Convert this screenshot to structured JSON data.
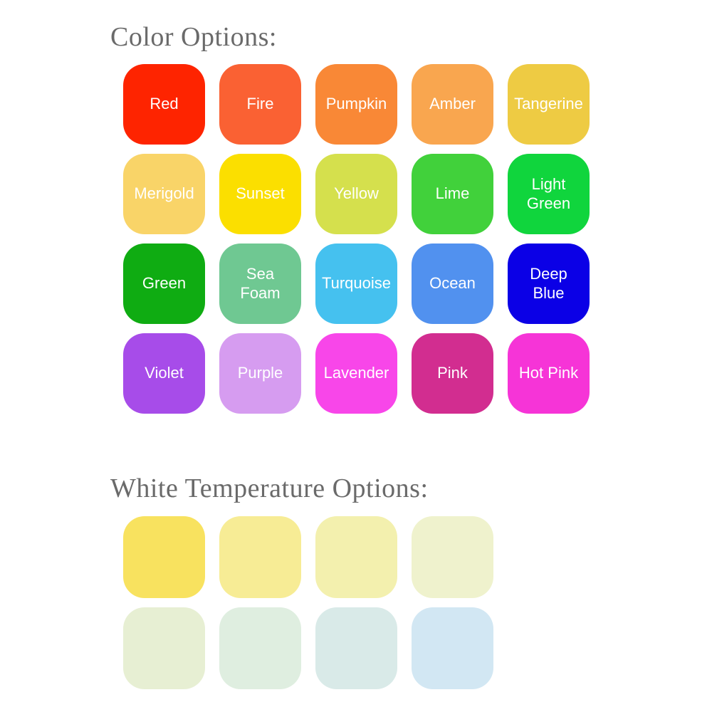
{
  "page": {
    "background": "#ffffff",
    "heading_color": "#6a6a6a",
    "swatch_label_color": "#ffffff"
  },
  "color_section": {
    "title": "Color Options:",
    "swatches": [
      {
        "label": "Red",
        "color": "#FE2400"
      },
      {
        "label": "Fire",
        "color": "#FA6133"
      },
      {
        "label": "Pumpkin",
        "color": "#F98836"
      },
      {
        "label": "Amber",
        "color": "#F9A64F"
      },
      {
        "label": "Tangerine",
        "color": "#EECB43"
      },
      {
        "label": "Merigold",
        "color": "#F9D468"
      },
      {
        "label": "Sunset",
        "color": "#FBDF00"
      },
      {
        "label": "Yellow",
        "color": "#D5E04D"
      },
      {
        "label": "Lime",
        "color": "#41D13B"
      },
      {
        "label": "Light\nGreen",
        "color": "#10D53D"
      },
      {
        "label": "Green",
        "color": "#0FAC12"
      },
      {
        "label": "Sea\nFoam",
        "color": "#6FC892"
      },
      {
        "label": "Turquoise",
        "color": "#45C1EF"
      },
      {
        "label": "Ocean",
        "color": "#5191EF"
      },
      {
        "label": "Deep\nBlue",
        "color": "#0B00E6"
      },
      {
        "label": "Violet",
        "color": "#A74CE9"
      },
      {
        "label": "Purple",
        "color": "#D69CF0"
      },
      {
        "label": "Lavender",
        "color": "#F846E9"
      },
      {
        "label": "Pink",
        "color": "#D22D90"
      },
      {
        "label": "Hot Pink",
        "color": "#F634D7"
      }
    ]
  },
  "white_section": {
    "title": "White Temperature Options:",
    "swatches": [
      {
        "color": "#F8E25F"
      },
      {
        "color": "#F7EC95"
      },
      {
        "color": "#F3F0AE"
      },
      {
        "color": "#EFF2CD"
      },
      {
        "color": "#E7EFD3"
      },
      {
        "color": "#DFEEE0"
      },
      {
        "color": "#D9EAE8"
      },
      {
        "color": "#D2E7F3"
      }
    ]
  }
}
